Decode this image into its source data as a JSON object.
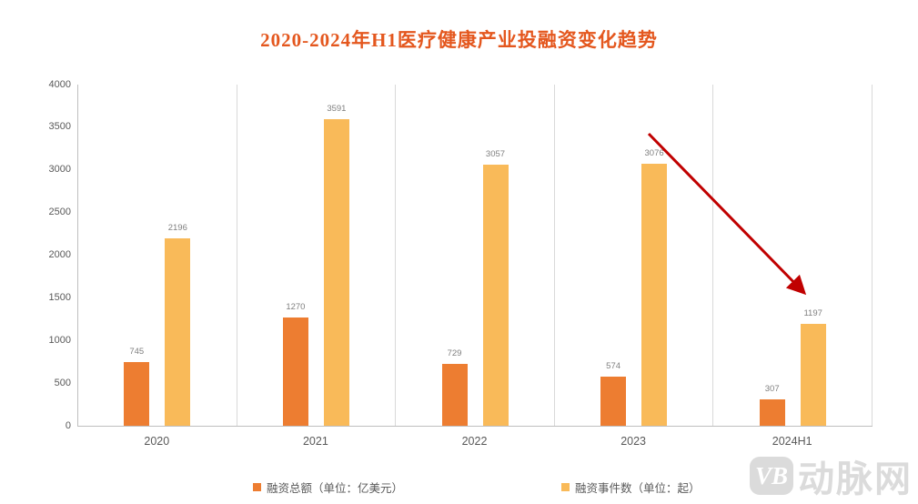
{
  "chart_data": {
    "type": "bar",
    "title": "2020-2024年H1医疗健康产业投融资变化趋势",
    "categories": [
      "2020",
      "2021",
      "2022",
      "2023",
      "2024H1"
    ],
    "series": [
      {
        "name": "融资总额（单位：亿美元）",
        "color": "#ED7D31",
        "values": [
          745,
          1270,
          729,
          574,
          307
        ]
      },
      {
        "name": "融资事件数（单位：起）",
        "color": "#F9BA59",
        "values": [
          2196,
          3591,
          3057,
          3076,
          1197
        ]
      }
    ],
    "ylim": [
      0,
      4000
    ],
    "yticks": [
      0,
      500,
      1000,
      1500,
      2000,
      2500,
      3000,
      3500,
      4000
    ],
    "xlabel": "",
    "ylabel": "",
    "grid": "vertical category separators only, no horizontal gridlines",
    "legend_position": "bottom",
    "annotation": {
      "type": "arrow",
      "name": "decline-trend-arrow",
      "color": "#C00000",
      "from_category": "2023",
      "to_category": "2024H1",
      "meaning": "decline from 2023 events bar to 2024H1 events bar"
    }
  },
  "colors": {
    "title": "#E4571E",
    "axis_line": "#BFBFBF",
    "gridline": "#D9D9D9",
    "tick_label": "#595959",
    "value_label": "#7F7F7F",
    "legend_label": "#595959",
    "watermark": "#DBDBDB"
  },
  "watermark": {
    "logo": "VB",
    "text": "动脉网"
  }
}
